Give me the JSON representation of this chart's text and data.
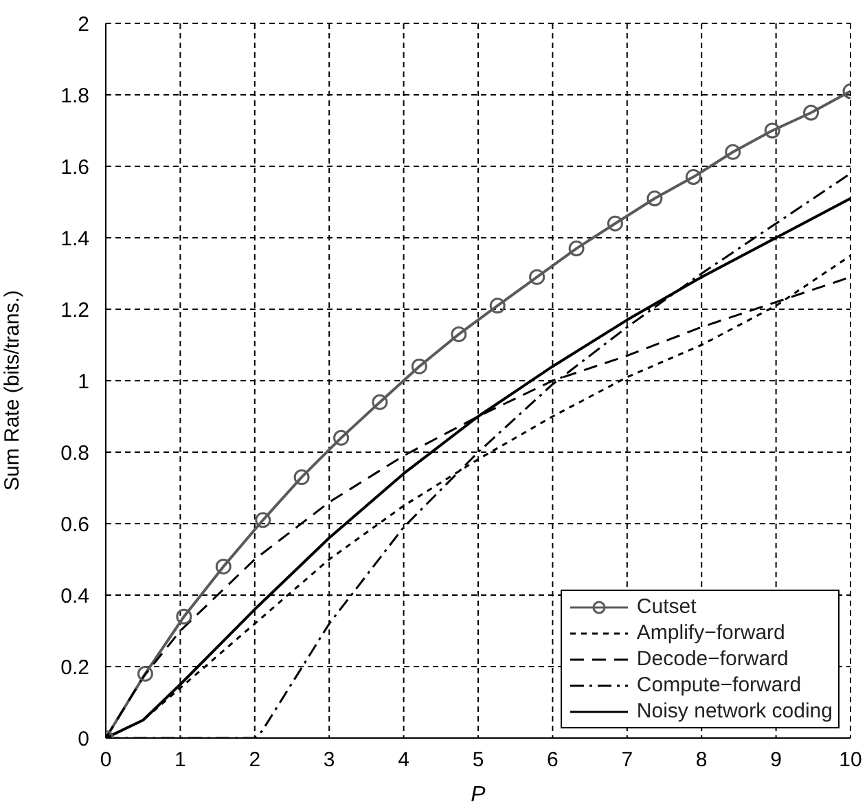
{
  "chart_data": {
    "type": "line",
    "xlabel": "P",
    "ylabel": "Sum Rate (bits/trans.)",
    "xlim": [
      0,
      10
    ],
    "xticks": [
      0,
      1,
      2,
      3,
      4,
      5,
      6,
      7,
      8,
      9,
      10
    ],
    "ylim": [
      0,
      2
    ],
    "yticks": [
      0,
      0.2,
      0.4,
      0.6,
      0.8,
      1,
      1.2,
      1.4,
      1.6,
      1.8,
      2
    ],
    "grid": true,
    "legend": "bottom right",
    "series": [
      {
        "name": "Cutset",
        "color": "#5a5a5a",
        "marker": "circle",
        "line_style": "solid",
        "x": [
          0,
          0.53,
          1.05,
          1.58,
          2.11,
          2.63,
          3.16,
          3.68,
          4.21,
          4.74,
          5.26,
          5.79,
          6.32,
          6.84,
          7.37,
          7.89,
          8.42,
          8.95,
          9.47,
          10
        ],
        "values": [
          0,
          0.18,
          0.34,
          0.48,
          0.61,
          0.73,
          0.84,
          0.94,
          1.04,
          1.13,
          1.21,
          1.29,
          1.37,
          1.44,
          1.51,
          1.57,
          1.64,
          1.7,
          1.75,
          1.81
        ]
      },
      {
        "name": "Amplify−forward",
        "color": "#000000",
        "marker": "none",
        "line_style": "dotted",
        "x": [
          0,
          0.5,
          1,
          2,
          3,
          4,
          5,
          6,
          7,
          8,
          9,
          10
        ],
        "values": [
          0,
          0.05,
          0.14,
          0.32,
          0.5,
          0.65,
          0.78,
          0.9,
          1.01,
          1.1,
          1.21,
          1.35
        ]
      },
      {
        "name": "Decode−forward",
        "color": "#000000",
        "marker": "none",
        "line_style": "dashed",
        "x": [
          0,
          0.5,
          1,
          2,
          3,
          4,
          5,
          6,
          7,
          8,
          9,
          10
        ],
        "values": [
          0,
          0.17,
          0.3,
          0.5,
          0.66,
          0.79,
          0.9,
          1.0,
          1.07,
          1.15,
          1.22,
          1.29
        ]
      },
      {
        "name": "Compute−forward",
        "color": "#000000",
        "marker": "none",
        "line_style": "dashdot",
        "x": [
          0,
          1,
          2,
          2.1,
          3,
          4,
          5,
          6,
          7,
          8,
          9,
          10
        ],
        "values": [
          0,
          0,
          0,
          0.02,
          0.32,
          0.59,
          0.8,
          0.99,
          1.15,
          1.3,
          1.44,
          1.58
        ]
      },
      {
        "name": "Noisy network coding",
        "color": "#000000",
        "marker": "none",
        "line_style": "solid",
        "x": [
          0,
          0.5,
          1,
          2,
          3,
          4,
          5,
          6,
          7,
          8,
          9,
          10
        ],
        "values": [
          0,
          0.05,
          0.15,
          0.36,
          0.56,
          0.74,
          0.9,
          1.04,
          1.17,
          1.29,
          1.4,
          1.51
        ]
      }
    ]
  }
}
